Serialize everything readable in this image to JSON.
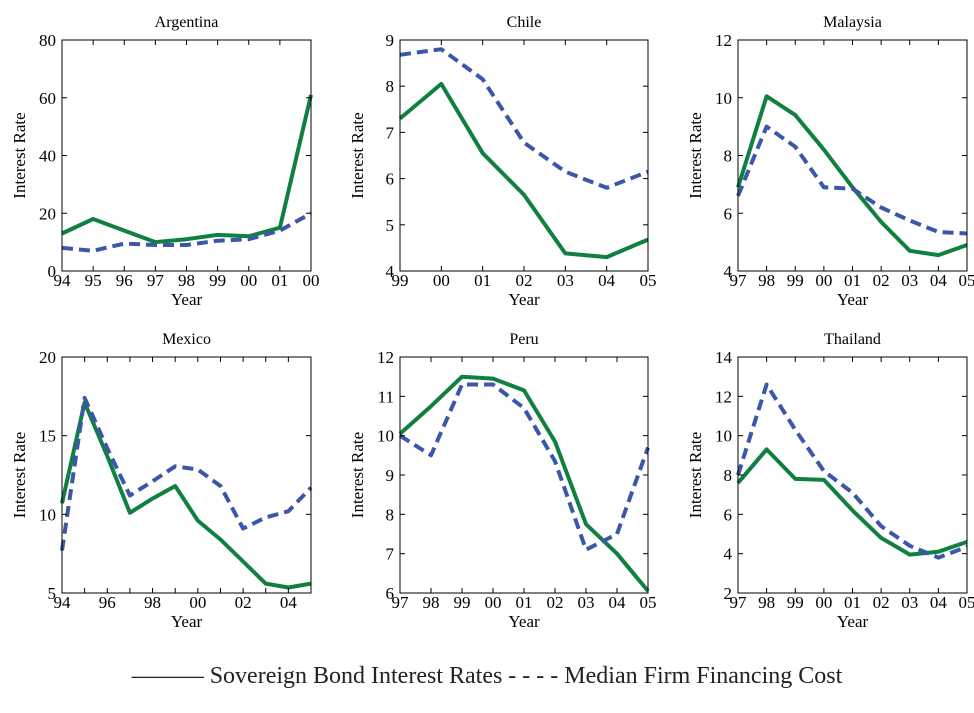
{
  "colors": {
    "sovereign": "#108040",
    "firm": "#3c56a8",
    "axis": "#000000"
  },
  "legend": {
    "text": "——— Sovereign Bond Interest Rates - - - - Median Firm Financing Cost"
  },
  "chart_data": [
    {
      "type": "line",
      "title": "Argentina",
      "xlabel": "Year",
      "ylabel": "Interest Rate",
      "categories": [
        "94",
        "95",
        "96",
        "97",
        "98",
        "99",
        "00",
        "01",
        "00"
      ],
      "ylim": [
        0,
        80
      ],
      "yticks": [
        0,
        20,
        40,
        60,
        80
      ],
      "series": [
        {
          "key": "sovereign",
          "values": [
            13,
            18,
            14,
            10,
            11,
            12.5,
            12,
            15,
            61
          ]
        },
        {
          "key": "firm",
          "values": [
            8,
            7,
            9.5,
            9,
            9,
            10.5,
            11,
            14,
            20
          ]
        }
      ]
    },
    {
      "type": "line",
      "title": "Chile",
      "xlabel": "Year",
      "ylabel": "Interest Rate",
      "categories": [
        "99",
        "00",
        "01",
        "02",
        "03",
        "04",
        "05"
      ],
      "ylim": [
        4,
        9
      ],
      "yticks": [
        4,
        5,
        6,
        7,
        8,
        9
      ],
      "series": [
        {
          "key": "sovereign",
          "values": [
            7.3,
            8.05,
            6.55,
            5.65,
            4.38,
            4.3,
            4.68
          ]
        },
        {
          "key": "firm",
          "values": [
            8.68,
            8.8,
            8.15,
            6.78,
            6.15,
            5.8,
            6.15
          ]
        }
      ]
    },
    {
      "type": "line",
      "title": "Malaysia",
      "xlabel": "Year",
      "ylabel": "Interest Rate",
      "categories": [
        "97",
        "98",
        "99",
        "00",
        "01",
        "02",
        "03",
        "04",
        "05"
      ],
      "ylim": [
        4,
        12
      ],
      "yticks": [
        4,
        6,
        8,
        10,
        12
      ],
      "series": [
        {
          "key": "sovereign",
          "values": [
            6.9,
            10.05,
            9.4,
            8.2,
            6.9,
            5.7,
            4.7,
            4.55,
            4.9
          ]
        },
        {
          "key": "firm",
          "values": [
            6.6,
            9.0,
            8.3,
            6.9,
            6.85,
            6.2,
            5.75,
            5.35,
            5.3
          ]
        }
      ]
    },
    {
      "type": "line",
      "title": "Mexico",
      "xlabel": "Year",
      "ylabel": "Interest Rate",
      "categories": [
        "94",
        "95",
        "96",
        "97",
        "98",
        "99",
        "00",
        "01",
        "02",
        "03",
        "04",
        "05"
      ],
      "xticks": [
        "94",
        "96",
        "98",
        "00",
        "02",
        "04"
      ],
      "ylim": [
        5,
        20
      ],
      "yticks": [
        5,
        10,
        15,
        20
      ],
      "series": [
        {
          "key": "sovereign",
          "values": [
            10.7,
            17.1,
            13.7,
            10.1,
            11.0,
            11.8,
            9.6,
            8.4,
            7.0,
            5.6,
            5.35,
            5.6
          ]
        },
        {
          "key": "firm",
          "values": [
            7.7,
            17.4,
            14.2,
            11.2,
            12.1,
            13.05,
            12.85,
            11.8,
            9.1,
            9.8,
            10.2,
            11.7
          ]
        }
      ]
    },
    {
      "type": "line",
      "title": "Peru",
      "xlabel": "Year",
      "ylabel": "Interest Rate",
      "categories": [
        "97",
        "98",
        "99",
        "00",
        "01",
        "02",
        "03",
        "04",
        "05"
      ],
      "ylim": [
        6,
        12
      ],
      "yticks": [
        6,
        7,
        8,
        9,
        10,
        11,
        12
      ],
      "series": [
        {
          "key": "sovereign",
          "values": [
            10.05,
            10.75,
            11.5,
            11.45,
            11.15,
            9.85,
            7.75,
            7.0,
            6.05
          ]
        },
        {
          "key": "firm",
          "values": [
            10.0,
            9.5,
            11.3,
            11.3,
            10.7,
            9.35,
            7.1,
            7.5,
            9.7
          ]
        }
      ]
    },
    {
      "type": "line",
      "title": "Thailand",
      "xlabel": "Year",
      "ylabel": "Interest Rate",
      "categories": [
        "97",
        "98",
        "99",
        "00",
        "01",
        "02",
        "03",
        "04",
        "05"
      ],
      "ylim": [
        2,
        14
      ],
      "yticks": [
        2,
        4,
        6,
        8,
        10,
        12,
        14
      ],
      "series": [
        {
          "key": "sovereign",
          "values": [
            7.6,
            9.3,
            7.8,
            7.75,
            6.2,
            4.8,
            3.95,
            4.1,
            4.6
          ]
        },
        {
          "key": "firm",
          "values": [
            8.0,
            12.6,
            10.3,
            8.2,
            7.1,
            5.4,
            4.4,
            3.8,
            4.35
          ]
        }
      ]
    }
  ]
}
